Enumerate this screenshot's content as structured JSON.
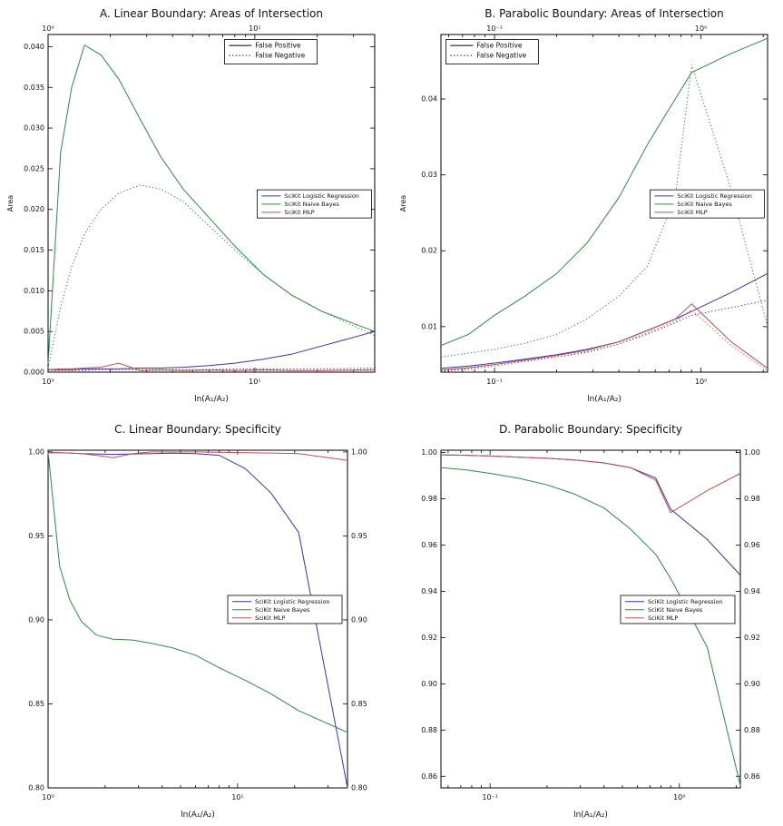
{
  "page": {
    "background": "#ffffff"
  },
  "palette": {
    "logistic": "#3535b5",
    "naive_bayes": "#2d8a45",
    "mlp": "#c0504d"
  },
  "chart_data": [
    {
      "id": "A",
      "type": "line",
      "title": "A. Linear Boundary: Areas of Intersection",
      "xlabel": "ln(A₁/A₂)",
      "ylabel": "Area",
      "x_scale": "log",
      "grid": false,
      "xlim": [
        1,
        38
      ],
      "ylim": [
        0,
        0.0415
      ],
      "x_major_ticks": [
        {
          "v": 1,
          "label": "10⁰"
        },
        {
          "v": 10,
          "label": "10¹"
        }
      ],
      "x_labels_top": true,
      "y_labels_right": false,
      "y_ticks": [
        {
          "v": 0.0,
          "label": "0.000"
        },
        {
          "v": 0.005,
          "label": "0.005"
        },
        {
          "v": 0.01,
          "label": "0.010"
        },
        {
          "v": 0.015,
          "label": "0.015"
        },
        {
          "v": 0.02,
          "label": "0.020"
        },
        {
          "v": 0.025,
          "label": "0.025"
        },
        {
          "v": 0.03,
          "label": "0.030"
        },
        {
          "v": 0.035,
          "label": "0.035"
        },
        {
          "v": 0.04,
          "label": "0.040"
        }
      ],
      "style_legend": {
        "x": 0.54,
        "y": 0.015,
        "items": [
          {
            "style": "solid",
            "label": "False Positive"
          },
          {
            "style": "dotted",
            "label": "False Negative"
          }
        ]
      },
      "color_legend": {
        "x": 0.64,
        "y": 0.46,
        "items": [
          {
            "color": "#3535b5",
            "label": "SciKit Logistic Regression"
          },
          {
            "color": "#2d8a45",
            "label": "SciKit Naive Bayes"
          },
          {
            "color": "#c0504d",
            "label": "SciKit MLP"
          }
        ]
      },
      "x": [
        1,
        1.15,
        1.3,
        1.5,
        1.8,
        2.2,
        2.8,
        3.5,
        4.5,
        6,
        8,
        11,
        15,
        21,
        38
      ],
      "series": [
        {
          "name": "SciKit Naive Bayes False Positive",
          "color": "#2d8a45",
          "style": "solid",
          "y": [
            0.001,
            0.027,
            0.035,
            0.0402,
            0.039,
            0.036,
            0.031,
            0.0265,
            0.0225,
            0.019,
            0.0155,
            0.012,
            0.0095,
            0.0075,
            0.005
          ]
        },
        {
          "name": "SciKit Naive Bayes False Negative",
          "color": "#2d8a45",
          "style": "dotted",
          "y": [
            0.0005,
            0.008,
            0.013,
            0.017,
            0.02,
            0.022,
            0.023,
            0.0225,
            0.021,
            0.018,
            0.015,
            0.012,
            0.0095,
            0.0075,
            0.0045
          ]
        },
        {
          "name": "SciKit Logistic Regression False Positive",
          "color": "#3535b5",
          "style": "solid",
          "y": [
            0.0003,
            0.0003,
            0.0003,
            0.0004,
            0.0004,
            0.0004,
            0.0005,
            0.0005,
            0.0006,
            0.0008,
            0.0011,
            0.0016,
            0.0022,
            0.0032,
            0.005
          ]
        },
        {
          "name": "SciKit Logistic Regression False Negative",
          "color": "#3535b5",
          "style": "dotted",
          "y": [
            0.0002,
            0.0002,
            0.0002,
            0.0002,
            0.0003,
            0.0003,
            0.0003,
            0.0003,
            0.0003,
            0.0003,
            0.0004,
            0.0004,
            0.0004,
            0.0004,
            0.0005
          ]
        },
        {
          "name": "SciKit MLP False Positive",
          "color": "#c0504d",
          "style": "solid",
          "y": [
            0.0003,
            0.0004,
            0.0004,
            0.0005,
            0.0006,
            0.0011,
            0.0002,
            0.0003,
            0.0002,
            0.0003,
            0.0002,
            0.0003,
            0.0002,
            0.0002,
            0.0003
          ]
        },
        {
          "name": "SciKit MLP False Negative",
          "color": "#c0504d",
          "style": "dotted",
          "y": [
            0.0002,
            0.0002,
            0.0003,
            0.0003,
            0.0003,
            0.0004,
            0.0002,
            0.0002,
            0.0002,
            0.0002,
            0.0002,
            0.0002,
            0.0002,
            0.0002,
            0.0002
          ]
        }
      ]
    },
    {
      "id": "B",
      "type": "line",
      "title": "B. Parabolic Boundary: Areas of Intersection",
      "xlabel": "ln(A₁/A₂)",
      "ylabel": "Area",
      "x_scale": "log",
      "grid": false,
      "xlim": [
        0.055,
        2.1
      ],
      "ylim": [
        0.004,
        0.0485
      ],
      "x_major_ticks": [
        {
          "v": 0.1,
          "label": "10⁻¹"
        },
        {
          "v": 1,
          "label": "10⁰"
        }
      ],
      "x_labels_top": true,
      "y_labels_right": false,
      "y_ticks": [
        {
          "v": 0.01,
          "label": "0.01"
        },
        {
          "v": 0.02,
          "label": "0.02"
        },
        {
          "v": 0.03,
          "label": "0.03"
        },
        {
          "v": 0.04,
          "label": "0.04"
        }
      ],
      "style_legend": {
        "x": 0.015,
        "y": 0.015,
        "items": [
          {
            "style": "solid",
            "label": "False Positive"
          },
          {
            "style": "dotted",
            "label": "False Negative"
          }
        ]
      },
      "color_legend": {
        "x": 0.64,
        "y": 0.46,
        "items": [
          {
            "color": "#3535b5",
            "label": "SciKit Logistic Regression"
          },
          {
            "color": "#2d8a45",
            "label": "SciKit Naive Bayes"
          },
          {
            "color": "#c0504d",
            "label": "SciKit MLP"
          }
        ]
      },
      "x": [
        0.055,
        0.075,
        0.1,
        0.14,
        0.2,
        0.28,
        0.4,
        0.55,
        0.75,
        0.9,
        1.4,
        2.1
      ],
      "series": [
        {
          "name": "SciKit Naive Bayes False Positive",
          "color": "#2d8a45",
          "style": "solid",
          "y": [
            0.0075,
            0.009,
            0.0115,
            0.014,
            0.017,
            0.021,
            0.027,
            0.034,
            0.04,
            0.0435,
            0.046,
            0.048
          ]
        },
        {
          "name": "SciKit Naive Bayes False Negative",
          "color": "#2d8a45",
          "style": "dotted",
          "y": [
            0.006,
            0.0065,
            0.007,
            0.0078,
            0.009,
            0.011,
            0.014,
            0.018,
            0.027,
            0.0445,
            0.028,
            0.01
          ]
        },
        {
          "name": "SciKit Logistic Regression False Positive",
          "color": "#3535b5",
          "style": "solid",
          "y": [
            0.0045,
            0.0048,
            0.0052,
            0.0057,
            0.0063,
            0.007,
            0.008,
            0.0095,
            0.011,
            0.012,
            0.0145,
            0.017
          ]
        },
        {
          "name": "SciKit Logistic Regression False Negative",
          "color": "#3535b5",
          "style": "dotted",
          "y": [
            0.0042,
            0.0045,
            0.005,
            0.0055,
            0.006,
            0.0067,
            0.0077,
            0.009,
            0.0105,
            0.0115,
            0.0125,
            0.0135
          ]
        },
        {
          "name": "SciKit MLP False Positive",
          "color": "#c0504d",
          "style": "solid",
          "y": [
            0.0043,
            0.0046,
            0.005,
            0.0056,
            0.0062,
            0.0069,
            0.008,
            0.0095,
            0.011,
            0.013,
            0.008,
            0.0045
          ]
        },
        {
          "name": "SciKit MLP False Negative",
          "color": "#c0504d",
          "style": "dotted",
          "y": [
            0.0041,
            0.0044,
            0.0048,
            0.0054,
            0.006,
            0.0066,
            0.0077,
            0.0092,
            0.0107,
            0.0122,
            0.0075,
            0.0042
          ]
        }
      ]
    },
    {
      "id": "C",
      "type": "line",
      "title": "C. Linear Boundary: Specificity",
      "xlabel": "ln(A₁/A₂)",
      "ylabel": "",
      "x_scale": "log",
      "grid": false,
      "xlim": [
        1,
        38
      ],
      "ylim": [
        0.8,
        1.001
      ],
      "x_major_ticks": [
        {
          "v": 1,
          "label": "10⁰"
        },
        {
          "v": 10,
          "label": "10¹"
        }
      ],
      "x_labels_top": false,
      "y_labels_right": true,
      "y_ticks": [
        {
          "v": 0.8,
          "label": "0.80"
        },
        {
          "v": 0.85,
          "label": "0.85"
        },
        {
          "v": 0.9,
          "label": "0.90"
        },
        {
          "v": 0.95,
          "label": "0.95"
        },
        {
          "v": 1.0,
          "label": "1.00"
        }
      ],
      "color_legend": {
        "x": 0.6,
        "y": 0.43,
        "items": [
          {
            "color": "#3535b5",
            "label": "SciKit Logistic Regression"
          },
          {
            "color": "#2d8a45",
            "label": "SciKit Naive Bayes"
          },
          {
            "color": "#c0504d",
            "label": "SciKit MLP"
          }
        ]
      },
      "x": [
        1,
        1.15,
        1.3,
        1.5,
        1.8,
        2.2,
        2.8,
        3.5,
        4.5,
        6,
        8,
        11,
        15,
        21,
        38
      ],
      "series": [
        {
          "name": "SciKit Logistic Regression",
          "color": "#3535b5",
          "style": "solid",
          "y": [
            0.9995,
            0.9995,
            0.9993,
            0.999,
            0.9988,
            0.9985,
            0.9988,
            0.999,
            0.9992,
            0.999,
            0.998,
            0.99,
            0.9755,
            0.952,
            0.8
          ]
        },
        {
          "name": "SciKit Naive Bayes",
          "color": "#2d8a45",
          "style": "solid",
          "y": [
            1.0,
            0.932,
            0.912,
            0.899,
            0.891,
            0.8885,
            0.888,
            0.886,
            0.8835,
            0.879,
            0.8715,
            0.864,
            0.856,
            0.846,
            0.833
          ]
        },
        {
          "name": "SciKit MLP",
          "color": "#c0504d",
          "style": "solid",
          "y": [
            0.9995,
            0.9995,
            0.9993,
            0.999,
            0.998,
            0.9965,
            0.999,
            1.0,
            1.0,
            1.0,
            0.9998,
            0.9995,
            0.9993,
            0.999,
            0.995
          ]
        }
      ]
    },
    {
      "id": "D",
      "type": "line",
      "title": "D. Parabolic Boundary: Specificity",
      "xlabel": "ln(A₁/A₂)",
      "ylabel": "",
      "x_scale": "log",
      "grid": false,
      "xlim": [
        0.055,
        2.1
      ],
      "ylim": [
        0.855,
        1.001
      ],
      "x_major_ticks": [
        {
          "v": 0.1,
          "label": "10⁻¹"
        },
        {
          "v": 1,
          "label": "10⁰"
        }
      ],
      "x_labels_top": false,
      "y_labels_right": true,
      "y_ticks": [
        {
          "v": 0.86,
          "label": "0.86"
        },
        {
          "v": 0.88,
          "label": "0.88"
        },
        {
          "v": 0.9,
          "label": "0.90"
        },
        {
          "v": 0.92,
          "label": "0.92"
        },
        {
          "v": 0.94,
          "label": "0.94"
        },
        {
          "v": 0.96,
          "label": "0.96"
        },
        {
          "v": 0.98,
          "label": "0.98"
        },
        {
          "v": 1.0,
          "label": "1.00"
        }
      ],
      "color_legend": {
        "x": 0.6,
        "y": 0.43,
        "items": [
          {
            "color": "#3535b5",
            "label": "SciKit Logistic Regression"
          },
          {
            "color": "#2d8a45",
            "label": "SciKit Naive Bayes"
          },
          {
            "color": "#c0504d",
            "label": "SciKit MLP"
          }
        ]
      },
      "x": [
        0.055,
        0.075,
        0.1,
        0.14,
        0.2,
        0.28,
        0.4,
        0.55,
        0.75,
        0.9,
        1.4,
        2.1
      ],
      "series": [
        {
          "name": "SciKit Logistic Regression",
          "color": "#3535b5",
          "style": "solid",
          "y": [
            0.999,
            0.9988,
            0.9985,
            0.998,
            0.9975,
            0.9968,
            0.9955,
            0.9935,
            0.989,
            0.9755,
            0.9625,
            0.947
          ]
        },
        {
          "name": "SciKit Naive Bayes",
          "color": "#2d8a45",
          "style": "solid",
          "y": [
            0.9935,
            0.9925,
            0.991,
            0.989,
            0.986,
            0.982,
            0.976,
            0.967,
            0.956,
            0.9455,
            0.916,
            0.856
          ]
        },
        {
          "name": "SciKit MLP",
          "color": "#c0504d",
          "style": "solid",
          "y": [
            0.999,
            0.9988,
            0.9985,
            0.998,
            0.9975,
            0.9968,
            0.9955,
            0.9935,
            0.988,
            0.974,
            0.9835,
            0.991
          ]
        }
      ]
    }
  ]
}
